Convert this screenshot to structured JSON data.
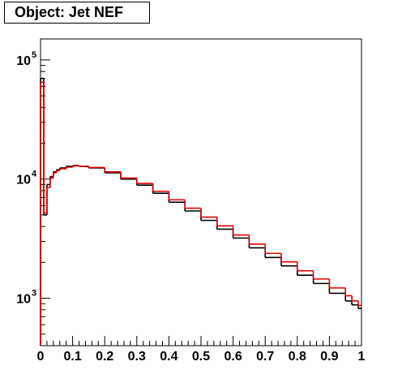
{
  "title": "Object: Jet NEF",
  "chart_data": {
    "type": "line",
    "title": "Object: Jet NEF",
    "xlabel": "",
    "ylabel": "",
    "xlim": [
      0,
      1
    ],
    "ylim": [
      400,
      150000
    ],
    "yscale": "log",
    "grid": false,
    "x_ticks": [
      "0",
      "0.1",
      "0.2",
      "0.3",
      "0.4",
      "0.5",
      "0.6",
      "0.7",
      "0.8",
      "0.9",
      "1"
    ],
    "y_ticks": [
      {
        "value": 1000,
        "base": "10",
        "exp": "3"
      },
      {
        "value": 10000,
        "base": "10",
        "exp": "4"
      },
      {
        "value": 100000,
        "base": "10",
        "exp": "5"
      }
    ],
    "series": [
      {
        "color": "#000000",
        "style": "step",
        "x": [
          0.0,
          0.01,
          0.02,
          0.03,
          0.04,
          0.05,
          0.06,
          0.08,
          0.1,
          0.12,
          0.15,
          0.2,
          0.25,
          0.3,
          0.35,
          0.4,
          0.45,
          0.5,
          0.55,
          0.6,
          0.65,
          0.7,
          0.75,
          0.8,
          0.85,
          0.9,
          0.95,
          0.97,
          0.99
        ],
        "values": [
          70000,
          5000,
          9000,
          10500,
          11500,
          12000,
          12400,
          12800,
          13000,
          12800,
          12400,
          11300,
          10000,
          8900,
          7600,
          6400,
          5400,
          4500,
          3800,
          3200,
          2650,
          2200,
          1870,
          1560,
          1330,
          1100,
          950,
          880,
          820
        ]
      },
      {
        "color": "#e00000",
        "style": "step",
        "x": [
          0.0,
          0.01,
          0.02,
          0.03,
          0.04,
          0.05,
          0.06,
          0.08,
          0.1,
          0.12,
          0.15,
          0.2,
          0.25,
          0.3,
          0.35,
          0.4,
          0.45,
          0.5,
          0.55,
          0.6,
          0.65,
          0.7,
          0.75,
          0.8,
          0.85,
          0.9,
          0.95,
          0.97,
          0.99
        ],
        "values": [
          65000,
          5200,
          8500,
          10200,
          11300,
          11800,
          12200,
          12600,
          12900,
          12800,
          12500,
          11500,
          10200,
          9200,
          7900,
          6700,
          5700,
          4800,
          4050,
          3400,
          2850,
          2380,
          2020,
          1700,
          1450,
          1220,
          1050,
          950,
          870
        ]
      }
    ]
  }
}
